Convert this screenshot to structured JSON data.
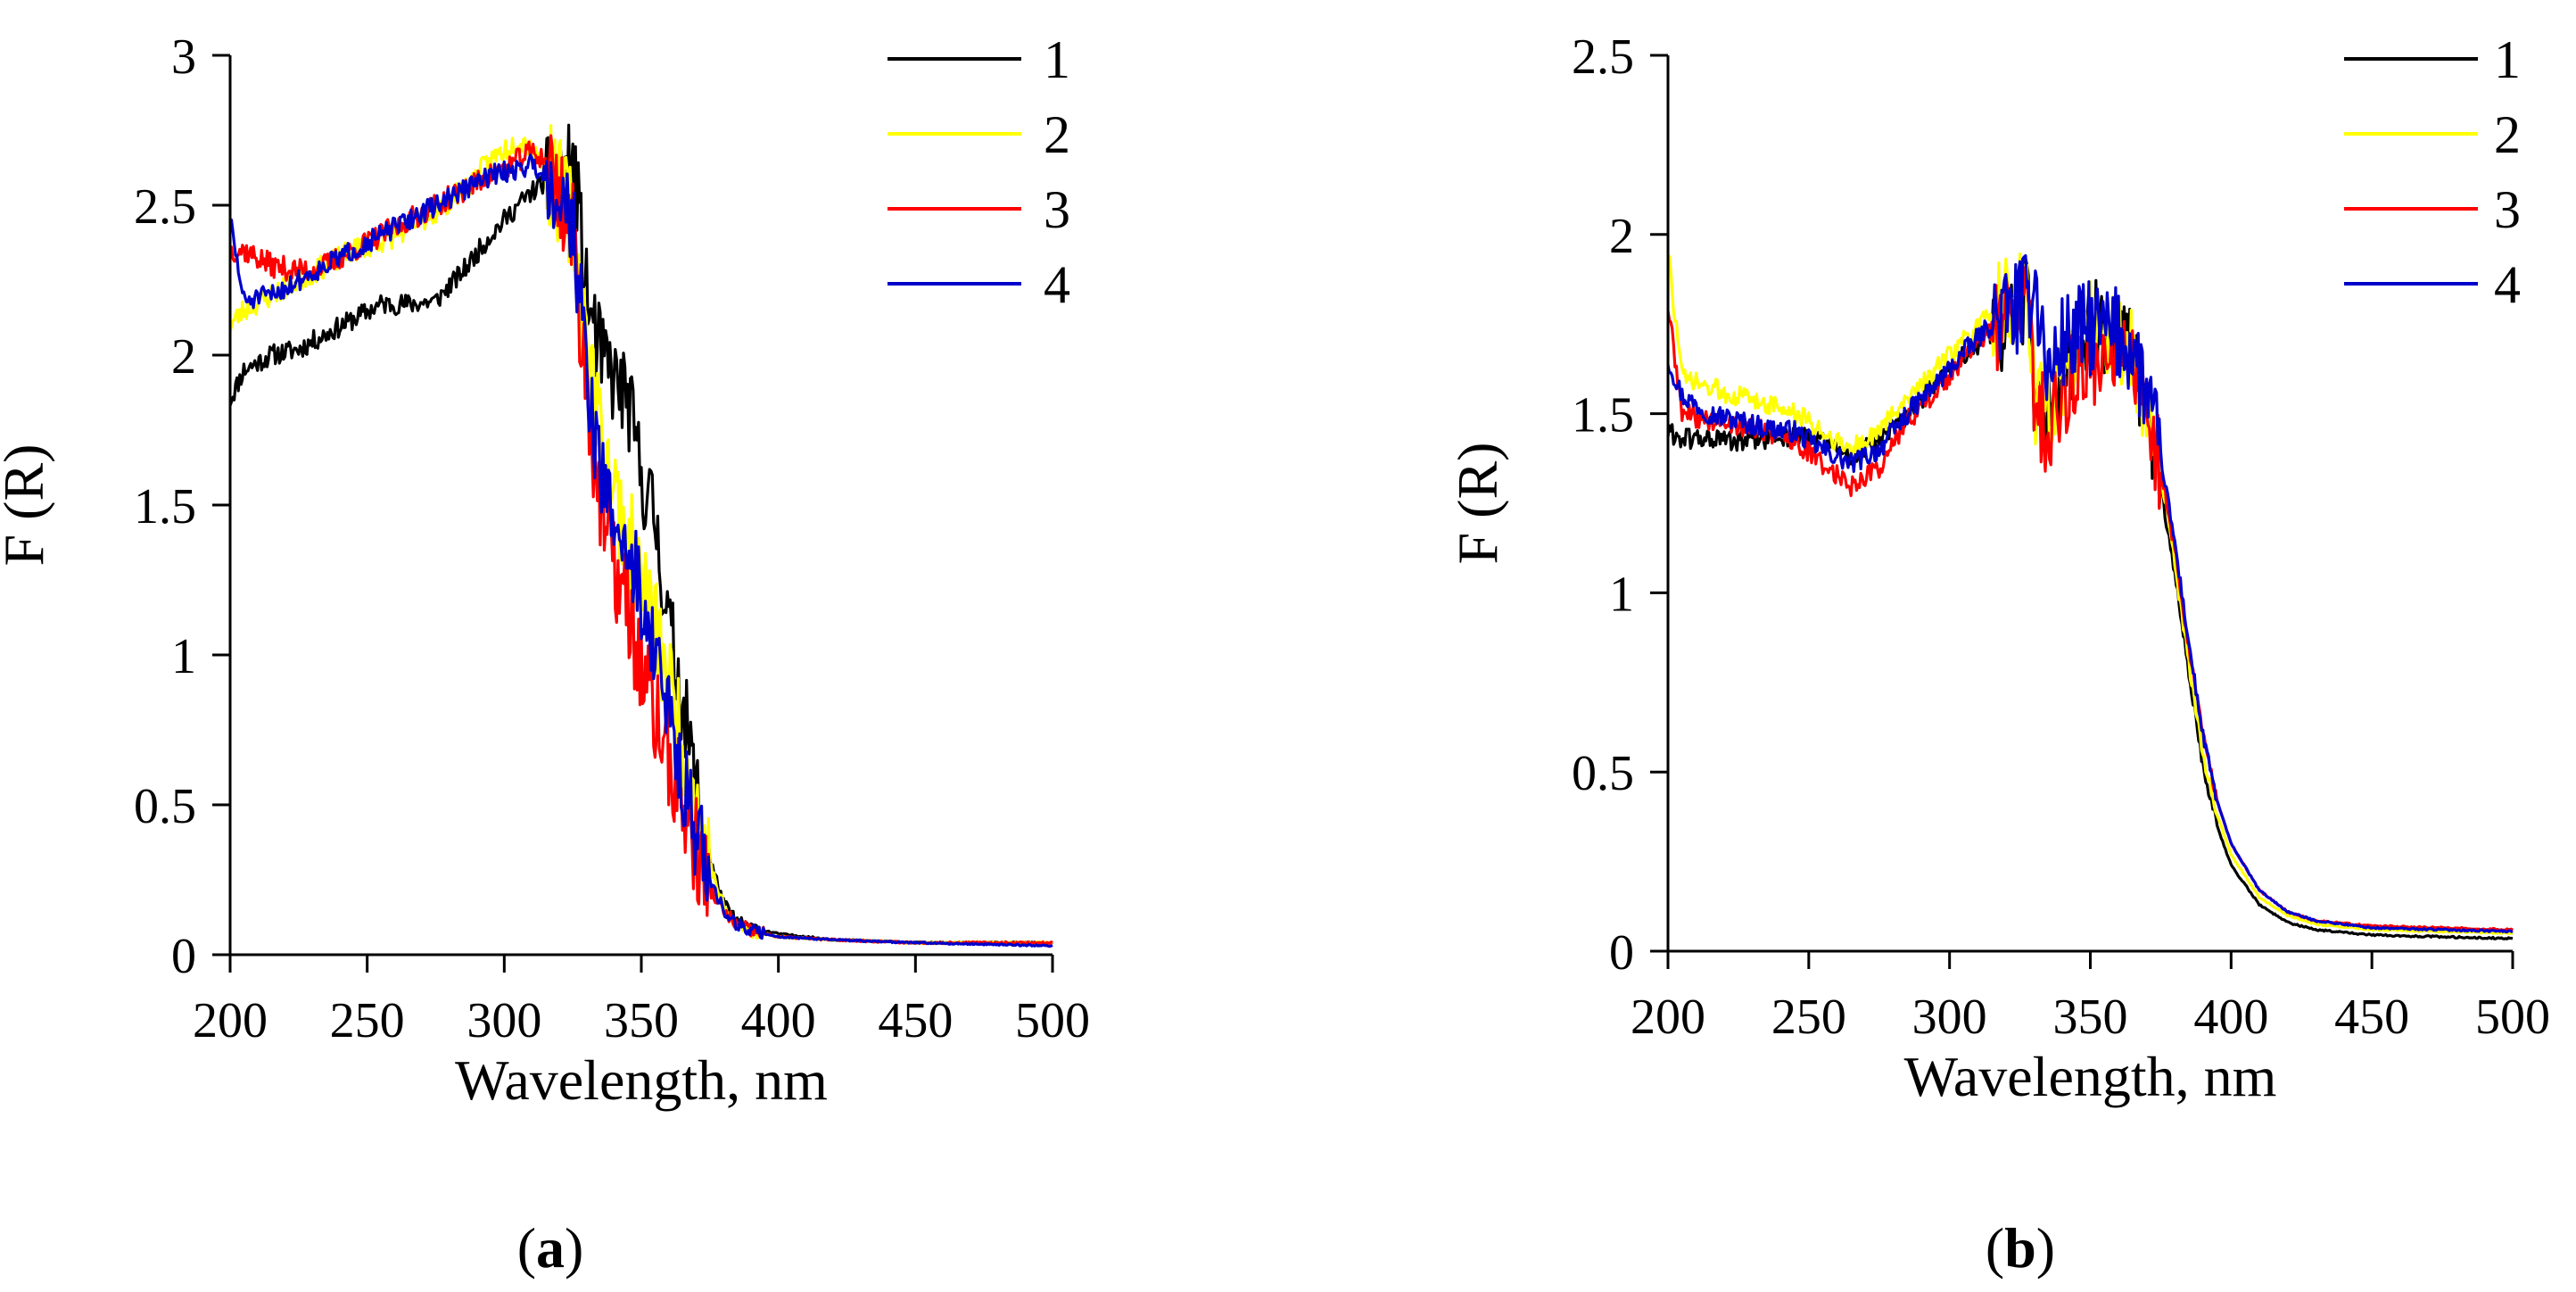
{
  "chart_data": [
    {
      "id": "a",
      "type": "line",
      "panel_label": "a",
      "xlabel": "Wavelength, nm",
      "ylabel": "F (R)",
      "xlim": [
        200,
        500
      ],
      "ylim": [
        0,
        3
      ],
      "xticks": [
        200,
        250,
        300,
        350,
        400,
        450,
        500
      ],
      "yticks": [
        0,
        0.5,
        1,
        1.5,
        2,
        2.5,
        3
      ],
      "ytick_labels": [
        "0",
        "0.5",
        "1",
        "1.5",
        "2",
        "2.5",
        "3"
      ],
      "legend_position": "top-right",
      "series": [
        {
          "name": "1",
          "color": "#000000",
          "noise": 0.035,
          "seed": 11,
          "x": [
            200,
            205,
            215,
            225,
            235,
            245,
            255,
            265,
            275,
            285,
            295,
            305,
            312,
            318,
            322,
            326,
            330,
            335,
            340,
            345,
            350,
            355,
            360,
            365,
            370,
            375,
            380,
            385,
            390,
            400,
            420,
            450,
            500
          ],
          "y": [
            1.85,
            1.95,
            2.0,
            2.02,
            2.07,
            2.12,
            2.17,
            2.17,
            2.18,
            2.28,
            2.4,
            2.5,
            2.56,
            2.6,
            2.62,
            2.6,
            2.2,
            2.0,
            1.92,
            1.85,
            1.6,
            1.45,
            1.1,
            0.85,
            0.55,
            0.32,
            0.17,
            0.11,
            0.09,
            0.07,
            0.05,
            0.04,
            0.04
          ]
        },
        {
          "name": "2",
          "color": "#ffff00",
          "noise": 0.04,
          "seed": 23,
          "x": [
            200,
            205,
            215,
            225,
            235,
            245,
            255,
            265,
            275,
            285,
            295,
            305,
            310,
            315,
            320,
            325,
            330,
            335,
            340,
            345,
            350,
            355,
            360,
            365,
            370,
            375,
            380,
            385,
            390,
            400,
            420,
            450,
            500
          ],
          "y": [
            2.1,
            2.15,
            2.2,
            2.25,
            2.3,
            2.35,
            2.38,
            2.42,
            2.48,
            2.55,
            2.65,
            2.72,
            2.7,
            2.62,
            2.55,
            2.45,
            2.05,
            1.75,
            1.55,
            1.4,
            1.25,
            1.1,
            0.9,
            0.72,
            0.5,
            0.3,
            0.16,
            0.1,
            0.08,
            0.06,
            0.05,
            0.04,
            0.04
          ]
        },
        {
          "name": "3",
          "color": "#ff0000",
          "noise": 0.04,
          "seed": 37,
          "x": [
            200,
            205,
            215,
            225,
            235,
            245,
            255,
            265,
            275,
            285,
            295,
            305,
            310,
            315,
            320,
            325,
            330,
            335,
            340,
            345,
            350,
            355,
            360,
            365,
            370,
            375,
            380,
            385,
            390,
            400,
            420,
            450,
            500
          ],
          "y": [
            2.35,
            2.35,
            2.3,
            2.28,
            2.3,
            2.35,
            2.4,
            2.45,
            2.5,
            2.55,
            2.6,
            2.65,
            2.68,
            2.65,
            2.55,
            2.4,
            1.9,
            1.5,
            1.3,
            1.15,
            0.95,
            0.8,
            0.65,
            0.5,
            0.35,
            0.22,
            0.14,
            0.1,
            0.08,
            0.06,
            0.05,
            0.04,
            0.04
          ]
        },
        {
          "name": "4",
          "color": "#0000cc",
          "noise": 0.035,
          "seed": 51,
          "x": [
            200,
            205,
            215,
            225,
            235,
            245,
            255,
            265,
            275,
            285,
            295,
            305,
            310,
            315,
            320,
            325,
            330,
            335,
            340,
            345,
            350,
            355,
            360,
            365,
            370,
            375,
            380,
            385,
            390,
            400,
            420,
            450,
            500
          ],
          "y": [
            2.45,
            2.18,
            2.2,
            2.25,
            2.3,
            2.35,
            2.4,
            2.45,
            2.5,
            2.55,
            2.6,
            2.62,
            2.64,
            2.6,
            2.55,
            2.45,
            1.95,
            1.6,
            1.45,
            1.35,
            1.2,
            1.0,
            0.8,
            0.6,
            0.4,
            0.25,
            0.15,
            0.1,
            0.08,
            0.06,
            0.05,
            0.04,
            0.03
          ]
        }
      ]
    },
    {
      "id": "b",
      "type": "line",
      "panel_label": "b",
      "xlabel": "Wavelength, nm",
      "ylabel": "F (R)",
      "xlim": [
        200,
        500
      ],
      "ylim": [
        0,
        2.5
      ],
      "xticks": [
        200,
        250,
        300,
        350,
        400,
        450,
        500
      ],
      "yticks": [
        0,
        0.5,
        1,
        1.5,
        2,
        2.5
      ],
      "ytick_labels": [
        "0",
        "0.5",
        "1",
        "1.5",
        "2",
        "2.5"
      ],
      "legend_position": "top-right",
      "series": [
        {
          "name": "1",
          "color": "#000000",
          "noise": 0.03,
          "seed": 61,
          "x": [
            200,
            205,
            215,
            225,
            235,
            245,
            255,
            265,
            275,
            285,
            295,
            305,
            315,
            320,
            325,
            328,
            330,
            335,
            340,
            345,
            350,
            355,
            360,
            365,
            370,
            375,
            380,
            385,
            390,
            395,
            400,
            410,
            420,
            430,
            450,
            475,
            500
          ],
          "y": [
            1.45,
            1.43,
            1.43,
            1.42,
            1.43,
            1.44,
            1.42,
            1.38,
            1.42,
            1.5,
            1.58,
            1.66,
            1.72,
            1.76,
            1.8,
            1.82,
            1.55,
            1.5,
            1.6,
            1.7,
            1.75,
            1.72,
            1.7,
            1.65,
            1.5,
            1.3,
            1.05,
            0.78,
            0.52,
            0.35,
            0.24,
            0.13,
            0.08,
            0.06,
            0.045,
            0.04,
            0.035
          ]
        },
        {
          "name": "2",
          "color": "#ffff00",
          "noise": 0.03,
          "seed": 73,
          "x": [
            200,
            205,
            215,
            225,
            235,
            245,
            255,
            265,
            275,
            285,
            295,
            305,
            315,
            320,
            325,
            328,
            330,
            335,
            340,
            345,
            350,
            355,
            360,
            365,
            370,
            375,
            380,
            385,
            390,
            395,
            400,
            410,
            420,
            430,
            450,
            475,
            500
          ],
          "y": [
            1.95,
            1.6,
            1.57,
            1.55,
            1.53,
            1.5,
            1.45,
            1.4,
            1.45,
            1.55,
            1.62,
            1.7,
            1.78,
            1.8,
            1.82,
            1.84,
            1.55,
            1.5,
            1.6,
            1.7,
            1.75,
            1.72,
            1.7,
            1.65,
            1.52,
            1.33,
            1.08,
            0.8,
            0.55,
            0.38,
            0.27,
            0.15,
            0.1,
            0.075,
            0.06,
            0.055,
            0.05
          ]
        },
        {
          "name": "3",
          "color": "#ff0000",
          "noise": 0.03,
          "seed": 89,
          "x": [
            200,
            205,
            215,
            225,
            235,
            245,
            255,
            265,
            275,
            285,
            295,
            305,
            315,
            320,
            325,
            328,
            330,
            335,
            340,
            345,
            350,
            355,
            360,
            365,
            370,
            375,
            380,
            385,
            390,
            395,
            400,
            410,
            420,
            430,
            450,
            475,
            500
          ],
          "y": [
            1.8,
            1.5,
            1.48,
            1.47,
            1.45,
            1.42,
            1.36,
            1.3,
            1.35,
            1.48,
            1.56,
            1.65,
            1.74,
            1.77,
            1.8,
            1.82,
            1.55,
            1.45,
            1.55,
            1.6,
            1.65,
            1.68,
            1.66,
            1.62,
            1.5,
            1.35,
            1.12,
            0.85,
            0.6,
            0.42,
            0.3,
            0.17,
            0.11,
            0.085,
            0.07,
            0.065,
            0.06
          ]
        },
        {
          "name": "4",
          "color": "#0000cc",
          "noise": 0.03,
          "seed": 97,
          "x": [
            200,
            205,
            215,
            225,
            235,
            245,
            255,
            265,
            275,
            285,
            295,
            305,
            315,
            320,
            325,
            328,
            330,
            335,
            340,
            345,
            350,
            355,
            360,
            365,
            370,
            375,
            380,
            385,
            390,
            395,
            400,
            410,
            420,
            430,
            450,
            475,
            500
          ],
          "y": [
            1.65,
            1.55,
            1.5,
            1.48,
            1.46,
            1.45,
            1.4,
            1.36,
            1.4,
            1.5,
            1.58,
            1.67,
            1.75,
            1.78,
            1.8,
            1.82,
            1.9,
            1.6,
            1.7,
            1.72,
            1.74,
            1.73,
            1.72,
            1.68,
            1.55,
            1.38,
            1.14,
            0.86,
            0.6,
            0.42,
            0.3,
            0.17,
            0.11,
            0.085,
            0.065,
            0.06,
            0.055
          ]
        }
      ]
    }
  ]
}
